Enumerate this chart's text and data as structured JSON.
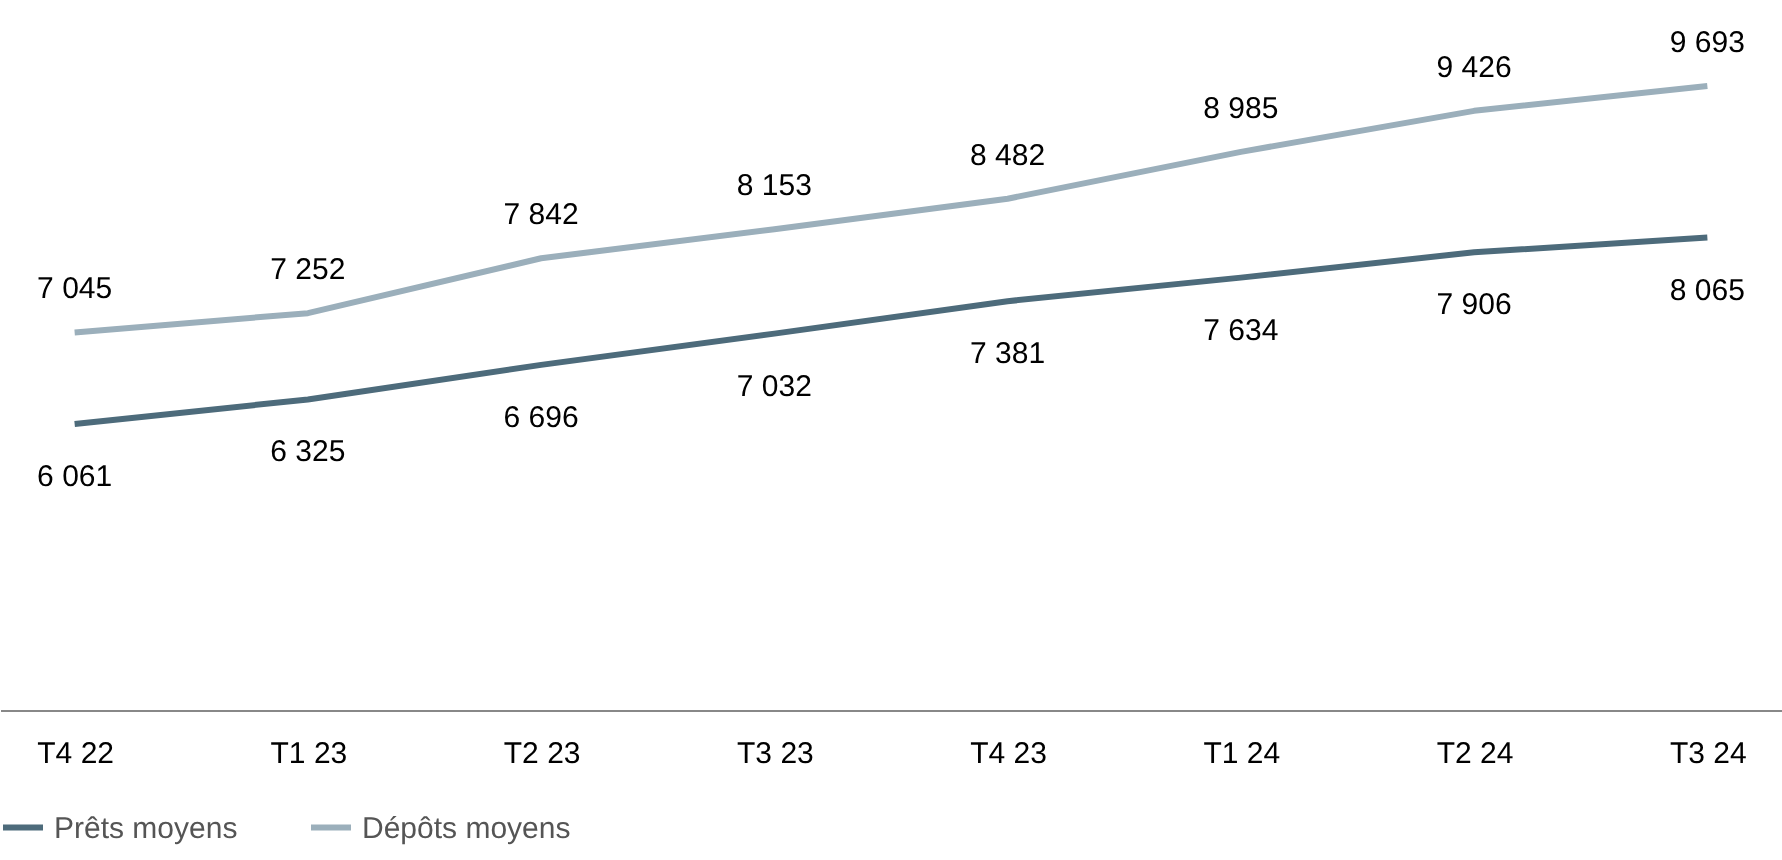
{
  "chart_data": {
    "type": "line",
    "categories": [
      "T4 22",
      "T1 23",
      "T2 23",
      "T3 23",
      "T4 23",
      "T1 24",
      "T2 24",
      "T3 24"
    ],
    "series": [
      {
        "name": "Prêts moyens",
        "color": "#4d6b7b",
        "values": [
          6061,
          6325,
          6696,
          7032,
          7381,
          7634,
          7906,
          8065
        ]
      },
      {
        "name": "Dépôts moyens",
        "color": "#9bafbb",
        "values": [
          7045,
          7252,
          7842,
          8153,
          8482,
          8985,
          9426,
          9693
        ]
      }
    ],
    "tick_labels": "x",
    "data_labels": true,
    "legend": "bottom",
    "grid": false,
    "marker": "none",
    "line_style": "solid"
  }
}
